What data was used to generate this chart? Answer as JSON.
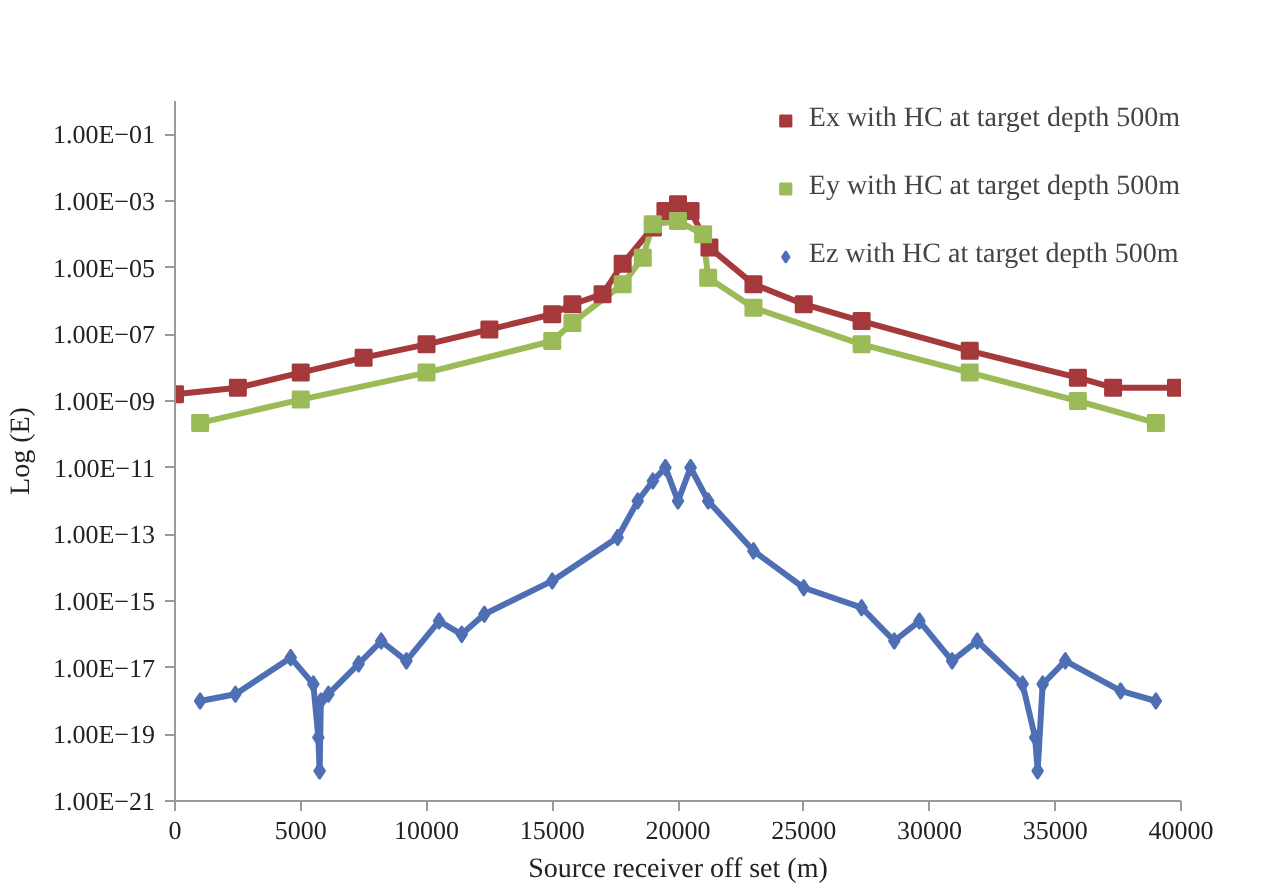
{
  "chart_data": {
    "type": "line",
    "xlabel": "Source receiver off set (m)",
    "ylabel": "Log (E)",
    "log": "y",
    "grid": false,
    "legend": "top right",
    "xlim": [
      0,
      40000
    ],
    "xticks": [
      0,
      5000,
      10000,
      15000,
      20000,
      25000,
      30000,
      35000,
      40000
    ],
    "ylim": [
      1e-21,
      1
    ],
    "yticks": [
      {
        "value": 0.1,
        "label": "1.00E−01"
      },
      {
        "value": 0.001,
        "label": "1.00E−03"
      },
      {
        "value": 1e-05,
        "label": "1.00E−05"
      },
      {
        "value": 1e-07,
        "label": "1.00E−07"
      },
      {
        "value": 1e-09,
        "label": "1.00E−09"
      },
      {
        "value": 1e-11,
        "label": "1.00E−11"
      },
      {
        "value": 1e-13,
        "label": "1.00E−13"
      },
      {
        "value": 1e-15,
        "label": "1.00E−15"
      },
      {
        "value": 1e-17,
        "label": "1.00E−17"
      },
      {
        "value": 1e-19,
        "label": "1.00E−19"
      },
      {
        "value": 1e-21,
        "label": "1.00E−21"
      }
    ],
    "series": [
      {
        "name": "Ex with HC at target depth 500m",
        "color": "#a5393b",
        "marker": "square",
        "x": [
          0,
          2500,
          5000,
          7500,
          10000,
          12500,
          15000,
          15800,
          17000,
          17800,
          19000,
          19500,
          20000,
          20500,
          21250,
          23000,
          25000,
          27300,
          31600,
          35900,
          37300,
          39800
        ],
        "values": [
          1.6e-09,
          2.5e-09,
          7.1e-09,
          2e-08,
          5e-08,
          1.4e-07,
          4e-07,
          8e-07,
          1.6e-06,
          1.3e-05,
          0.00016,
          0.0005,
          0.0008,
          0.0005,
          4e-05,
          3.2e-06,
          8e-07,
          2.5e-07,
          3.2e-08,
          5e-09,
          2.5e-09,
          2.5e-09
        ]
      },
      {
        "name": "Ey with HC at target depth 500m",
        "color": "#9bbb59",
        "marker": "square",
        "x": [
          1000,
          5000,
          10000,
          15000,
          15800,
          17800,
          18600,
          19000,
          20000,
          21000,
          21200,
          23000,
          27300,
          31600,
          35900,
          39000
        ],
        "values": [
          2.2e-10,
          1.1e-09,
          7.1e-09,
          6.3e-08,
          2.2e-07,
          3.2e-06,
          2e-05,
          0.0002,
          0.00025,
          0.0001,
          5e-06,
          6.3e-07,
          5e-08,
          7.1e-09,
          1e-09,
          2.2e-10
        ]
      },
      {
        "name": "Ez with HC at target depth 500m",
        "color": "#4f6fb5",
        "marker": "diamond",
        "x": [
          1000,
          2400,
          4600,
          5500,
          5700,
          5750,
          5800,
          6100,
          7300,
          8200,
          9200,
          10500,
          11400,
          12300,
          15000,
          17600,
          18400,
          19000,
          19500,
          20000,
          20500,
          21200,
          23000,
          25000,
          27300,
          28600,
          29600,
          30900,
          31900,
          33700,
          34200,
          34300,
          34500,
          35400,
          37600,
          39000
        ],
        "values": [
          1e-18,
          1.6e-18,
          2e-17,
          3.2e-18,
          8e-20,
          8e-21,
          1e-18,
          1.6e-18,
          1.3e-17,
          6.3e-17,
          1.6e-17,
          2.5e-16,
          1e-16,
          4e-16,
          4e-15,
          8e-14,
          1e-12,
          4e-12,
          1e-11,
          1e-12,
          1e-11,
          1e-12,
          3.2e-14,
          2.5e-15,
          6.3e-16,
          6.3e-17,
          2.5e-16,
          1.6e-17,
          6.3e-17,
          3.2e-18,
          8e-20,
          8e-21,
          3.2e-18,
          1.6e-17,
          2e-18,
          1e-18
        ]
      }
    ]
  }
}
